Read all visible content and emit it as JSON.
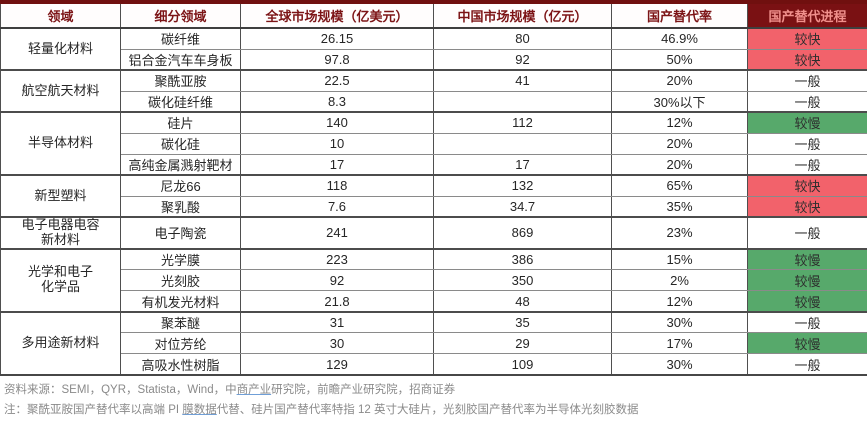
{
  "chart_data": {
    "type": "table",
    "columns": [
      {
        "label": "领域"
      },
      {
        "label": "细分领域"
      },
      {
        "label": "全球市场规模（亿美元）"
      },
      {
        "label": "中国市场规模（亿元）"
      },
      {
        "label": "国产替代率"
      },
      {
        "label": "国产替代进程"
      }
    ],
    "groups": [
      {
        "field": "轻量化材料",
        "rows": [
          {
            "sub": "碳纤维",
            "global": "26.15",
            "china": "80",
            "rate": "46.9%",
            "pace": "较快",
            "pace_key": "fast"
          },
          {
            "sub": "铝合金汽车车身板",
            "global": "97.8",
            "china": "92",
            "rate": "50%",
            "pace": "较快",
            "pace_key": "fast"
          }
        ]
      },
      {
        "field": "航空航天材料",
        "rows": [
          {
            "sub": "聚酰亚胺",
            "global": "22.5",
            "china": "41",
            "rate": "20%",
            "pace": "一般",
            "pace_key": "normal"
          },
          {
            "sub": "碳化硅纤维",
            "global": "8.3",
            "china": "",
            "rate": "30%以下",
            "pace": "一般",
            "pace_key": "normal"
          }
        ]
      },
      {
        "field": "半导体材料",
        "rows": [
          {
            "sub": "硅片",
            "global": "140",
            "china": "112",
            "rate": "12%",
            "pace": "较慢",
            "pace_key": "slow"
          },
          {
            "sub": "碳化硅",
            "global": "10",
            "china": "",
            "rate": "20%",
            "pace": "一般",
            "pace_key": "normal"
          },
          {
            "sub": "高纯金属溅射靶材",
            "global": "17",
            "china": "17",
            "rate": "20%",
            "pace": "一般",
            "pace_key": "normal"
          }
        ]
      },
      {
        "field": "新型塑料",
        "rows": [
          {
            "sub": "尼龙66",
            "global": "118",
            "china": "132",
            "rate": "65%",
            "pace": "较快",
            "pace_key": "fast"
          },
          {
            "sub": "聚乳酸",
            "global": "7.6",
            "china": "34.7",
            "rate": "35%",
            "pace": "较快",
            "pace_key": "fast"
          }
        ]
      },
      {
        "field": "电子电器电容\n新材料",
        "tall": true,
        "rows": [
          {
            "sub": "电子陶瓷",
            "global": "241",
            "china": "869",
            "rate": "23%",
            "pace": "一般",
            "pace_key": "normal"
          }
        ]
      },
      {
        "field": "光学和电子\n化学品",
        "rows": [
          {
            "sub": "光学膜",
            "global": "223",
            "china": "386",
            "rate": "15%",
            "pace": "较慢",
            "pace_key": "slow"
          },
          {
            "sub": "光刻胶",
            "global": "92",
            "china": "350",
            "rate": "2%",
            "pace": "较慢",
            "pace_key": "slow"
          },
          {
            "sub": "有机发光材料",
            "global": "21.8",
            "china": "48",
            "rate": "12%",
            "pace": "较慢",
            "pace_key": "slow"
          }
        ]
      },
      {
        "field": "多用途新材料",
        "rows": [
          {
            "sub": "聚苯醚",
            "global": "31",
            "china": "35",
            "rate": "30%",
            "pace": "一般",
            "pace_key": "normal"
          },
          {
            "sub": "对位芳纶",
            "global": "30",
            "china": "29",
            "rate": "17%",
            "pace": "较慢",
            "pace_key": "slow"
          },
          {
            "sub": "高吸水性树脂",
            "global": "129",
            "china": "109",
            "rate": "30%",
            "pace": "一般",
            "pace_key": "normal"
          }
        ]
      }
    ]
  },
  "colors": {
    "pace": {
      "fast": "#f2626b",
      "slow": "#57a96b",
      "normal": "#ffffff"
    },
    "header_accent": "#70100f",
    "progress_header_bg": "#7a1113",
    "progress_header_text": "#f0908c",
    "header_text": "#7c1416"
  },
  "footer": {
    "source": {
      "pre": "资料来源：SEMI，QYR，Statista，Wind，中",
      "underlined": "商产业",
      "post": "研究院，前瞻产业研究院，招商证券"
    },
    "note": {
      "pre": "注：聚酰亚胺国产替代率以高端 PI ",
      "underlined": "膜数据",
      "post": "代替、硅片国产替代率特指 12 英寸大硅片，光刻胶国产替代率为半导体光刻胶数据"
    }
  }
}
